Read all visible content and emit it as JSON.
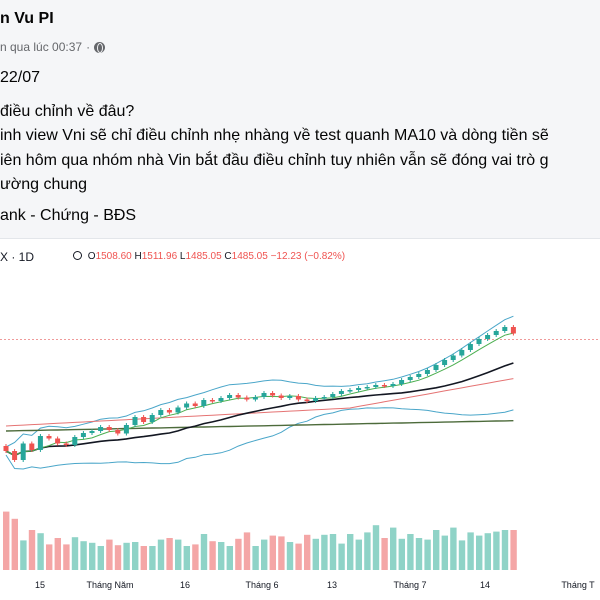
{
  "post": {
    "author": "n Vu PI",
    "timestamp": "n qua lúc 00:37",
    "separator": "·",
    "lines": [
      "22/07",
      " điều chỉnh về đâu?",
      "inh view Vni sẽ chỉ điều chỉnh nhẹ nhàng về test quanh MA10 và dòng tiền sẽ",
      "iên hôm qua nhóm nhà Vin bắt đầu điều chỉnh tuy nhiên vẫn sẽ đóng vai trò g",
      "ường chung",
      "ank - Chứng - BĐS"
    ]
  },
  "chart_data": {
    "type": "candlestick",
    "symbol": "X · 1D",
    "ohlc": {
      "O": "1508.60",
      "H": "1511.96",
      "L": "1485.05",
      "C": "1485.05",
      "change": "−12.23 (−0.82%)"
    },
    "x_tick_labels": [
      "15",
      "Tháng Năm",
      "16",
      "Tháng 6",
      "13",
      "Tháng 7",
      "14",
      "Tháng T"
    ],
    "price_range": [
      1200,
      1520
    ],
    "close": [
      1250,
      1232,
      1265,
      1252,
      1280,
      1275,
      1265,
      1262,
      1278,
      1286,
      1290,
      1298,
      1292,
      1285,
      1302,
      1318,
      1308,
      1322,
      1332,
      1327,
      1337,
      1345,
      1340,
      1352,
      1350,
      1356,
      1362,
      1357,
      1353,
      1358,
      1366,
      1361,
      1356,
      1360,
      1353,
      1350,
      1356,
      1358,
      1364,
      1370,
      1372,
      1376,
      1378,
      1382,
      1380,
      1384,
      1392,
      1398,
      1404,
      1412,
      1422,
      1432,
      1441,
      1452,
      1464,
      1474,
      1482,
      1490,
      1498,
      1485
    ],
    "volume_pct": [
      0.73,
      0.64,
      0.37,
      0.5,
      0.46,
      0.32,
      0.4,
      0.32,
      0.41,
      0.36,
      0.34,
      0.3,
      0.38,
      0.31,
      0.34,
      0.35,
      0.3,
      0.3,
      0.38,
      0.4,
      0.38,
      0.3,
      0.32,
      0.45,
      0.36,
      0.35,
      0.3,
      0.39,
      0.47,
      0.3,
      0.38,
      0.43,
      0.42,
      0.35,
      0.33,
      0.44,
      0.39,
      0.44,
      0.45,
      0.33,
      0.45,
      0.38,
      0.47,
      0.56,
      0.4,
      0.53,
      0.39,
      0.45,
      0.4,
      0.38,
      0.5,
      0.43,
      0.53,
      0.37,
      0.47,
      0.43,
      0.46,
      0.48,
      0.5,
      0.5
    ],
    "colors": {
      "up": "#26a69a",
      "down": "#ef5350",
      "ma_short": "#4caf50",
      "ma_mid": "#131722",
      "ma_long": "#e57373",
      "ma_base": "#4d6b3b",
      "band": "#4aa6c9"
    }
  }
}
